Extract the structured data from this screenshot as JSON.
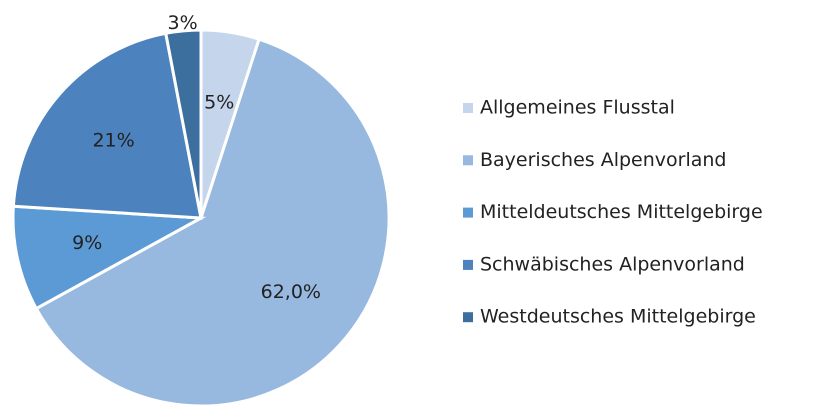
{
  "chart_data": {
    "type": "pie",
    "categories": [
      "Allgemeines Flusstal",
      "Bayerisches Alpenvorland",
      "Mitteldeutsches Mittelgebirge",
      "Schwäbisches Alpenvorland",
      "Westdeutsches Mittelgebirge"
    ],
    "values": [
      5,
      62.0,
      9,
      21,
      3
    ],
    "value_labels": [
      "5%",
      "62,0%",
      "9%",
      "21%",
      "3%"
    ],
    "colors": [
      "#c5d5eb",
      "#97b8df",
      "#5c9ad6",
      "#4c82bd",
      "#3d6f9e"
    ],
    "legend": "right"
  }
}
